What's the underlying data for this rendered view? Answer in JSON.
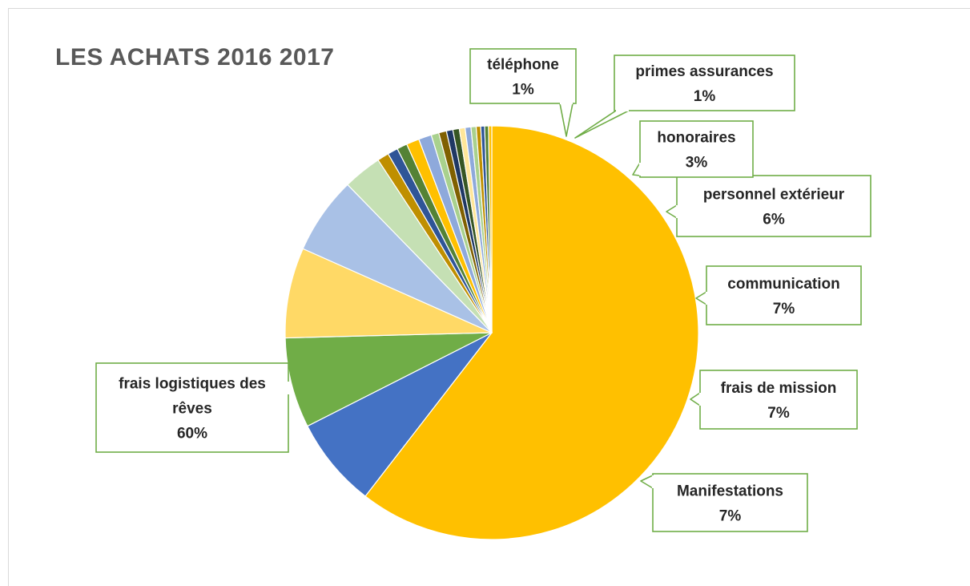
{
  "chart_data": {
    "type": "pie",
    "title": "LES ACHATS 2016 2017",
    "start_angle_deg": 0,
    "direction": "clockwise",
    "slices": [
      {
        "label": "frais logistiques des rêves",
        "value": 60,
        "percent_label": "60%",
        "color": "#FFC000",
        "callout_lines": [
          "frais logistiques des",
          "rêves",
          "60%"
        ]
      },
      {
        "label": "Manifestations",
        "value": 7,
        "percent_label": "7%",
        "color": "#4472C4",
        "callout_lines": [
          "Manifestations",
          "7%"
        ]
      },
      {
        "label": "frais de mission",
        "value": 7,
        "percent_label": "7%",
        "color": "#70AD47",
        "callout_lines": [
          "frais de mission",
          "7%"
        ]
      },
      {
        "label": "communication",
        "value": 7,
        "percent_label": "7%",
        "color": "#FFD966",
        "callout_lines": [
          "communication",
          "7%"
        ]
      },
      {
        "label": "personnel extérieur",
        "value": 6,
        "percent_label": "6%",
        "color": "#A9C1E6",
        "callout_lines": [
          "personnel extérieur",
          "6%"
        ]
      },
      {
        "label": "honoraires",
        "value": 3,
        "percent_label": "3%",
        "color": "#C5E0B4",
        "callout_lines": [
          "honoraires",
          "3%"
        ]
      },
      {
        "label": "",
        "value": 0.9,
        "color": "#BF8F00"
      },
      {
        "label": "",
        "value": 0.8,
        "color": "#2F5597"
      },
      {
        "label": "",
        "value": 0.8,
        "color": "#548235"
      },
      {
        "label": "primes assurances",
        "value": 1,
        "percent_label": "1%",
        "color": "#FFC000",
        "callout_lines": [
          "primes assurances",
          "1%"
        ]
      },
      {
        "label": "téléphone",
        "value": 1,
        "percent_label": "1%",
        "color": "#8EA9DB",
        "callout_lines": [
          "téléphone",
          "1%"
        ]
      },
      {
        "label": "",
        "value": 0.6,
        "color": "#A9D18E"
      },
      {
        "label": "",
        "value": 0.6,
        "color": "#806000"
      },
      {
        "label": "",
        "value": 0.5,
        "color": "#1F3864"
      },
      {
        "label": "",
        "value": 0.5,
        "color": "#375623"
      },
      {
        "label": "",
        "value": 0.45,
        "color": "#FFE699"
      },
      {
        "label": "",
        "value": 0.45,
        "color": "#8EA9DB"
      },
      {
        "label": "",
        "value": 0.4,
        "color": "#A9D18E"
      },
      {
        "label": "",
        "value": 0.35,
        "color": "#BF8F00"
      },
      {
        "label": "",
        "value": 0.3,
        "color": "#2F5597"
      },
      {
        "label": "",
        "value": 0.3,
        "color": "#548235"
      },
      {
        "label": "",
        "value": 0.25,
        "color": "#FFC000"
      }
    ],
    "callout_border_color": "#70AD47",
    "callout_fill_color": "#FFFFFF",
    "legend": "none",
    "data_labels": "callouts"
  }
}
